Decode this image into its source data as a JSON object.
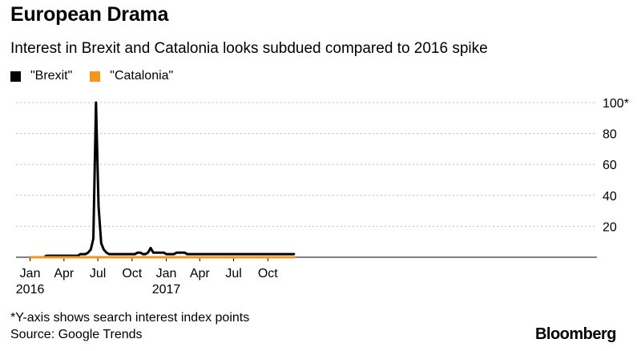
{
  "header": {
    "title": "European Drama",
    "subtitle": "Interest in Brexit and Catalonia looks subdued compared to 2016 spike"
  },
  "legend": [
    {
      "label": "\"Brexit\"",
      "color": "#000000"
    },
    {
      "label": "\"Catalonia\"",
      "color": "#f7941d"
    }
  ],
  "footer": {
    "note": "*Y-axis shows search interest index points",
    "source": "Source: Google Trends",
    "brand": "Bloomberg"
  },
  "chart_data": {
    "type": "line",
    "x_start": "2016-01-03",
    "x_step": "weekly",
    "ylim": [
      0,
      100
    ],
    "y_ticks": [
      20,
      40,
      60,
      80,
      100
    ],
    "y_tick_labels": [
      "20",
      "40",
      "60",
      "80",
      "100*"
    ],
    "x_ticks": [
      {
        "label": "Jan",
        "sublabel": "2016",
        "date": "2016-01-01"
      },
      {
        "label": "Apr",
        "date": "2016-04-01"
      },
      {
        "label": "Jul",
        "date": "2016-07-01"
      },
      {
        "label": "Oct",
        "date": "2016-10-01"
      },
      {
        "label": "Jan",
        "sublabel": "2017",
        "date": "2017-01-01"
      },
      {
        "label": "Apr",
        "date": "2017-04-01"
      },
      {
        "label": "Jul",
        "date": "2017-07-01"
      },
      {
        "label": "Oct",
        "date": "2017-10-01"
      }
    ],
    "grid": true,
    "series": [
      {
        "name": "\"Brexit\"",
        "color": "#000000",
        "values": [
          0,
          0,
          0,
          0,
          0,
          0,
          1,
          1,
          1,
          1,
          1,
          1,
          1,
          1,
          1,
          1,
          1,
          1,
          1,
          2,
          2,
          2,
          3,
          5,
          12,
          100,
          33,
          9,
          5,
          3,
          2,
          2,
          2,
          2,
          2,
          2,
          2,
          2,
          2,
          2,
          2,
          3,
          3,
          2,
          2,
          3,
          6,
          3,
          3,
          3,
          3,
          3,
          2,
          2,
          2,
          2,
          3,
          3,
          3,
          3,
          2,
          2,
          2,
          2,
          2,
          2,
          2,
          2,
          2,
          2,
          2,
          2,
          2,
          2,
          2,
          2,
          2,
          2,
          2,
          2,
          2,
          2,
          2,
          2,
          2,
          2,
          2,
          2,
          2,
          2,
          2,
          2,
          2,
          2,
          2,
          2,
          2,
          2,
          2,
          2,
          2,
          2
        ]
      },
      {
        "name": "\"Catalonia\"",
        "color": "#f7941d",
        "values": [
          0,
          0,
          0,
          0,
          0,
          0,
          0,
          0,
          0,
          0,
          0,
          0,
          0,
          0,
          0,
          0,
          0,
          0,
          0,
          0,
          0,
          0,
          0,
          0,
          0,
          0,
          0,
          0,
          0,
          0,
          0,
          0,
          0,
          0,
          0,
          0,
          0,
          0,
          0,
          0,
          0,
          0,
          0,
          0,
          0,
          0,
          0,
          0,
          0,
          0,
          0,
          0,
          0,
          0,
          0,
          0,
          0,
          0,
          0,
          0,
          0,
          0,
          0,
          0,
          0,
          0,
          0,
          0,
          0,
          0,
          0,
          0,
          0,
          0,
          0,
          0,
          0,
          0,
          0,
          0,
          0,
          0,
          0,
          0,
          0,
          0,
          0,
          0,
          0,
          0,
          0,
          0,
          0,
          0,
          0,
          0,
          0,
          0,
          0,
          0,
          0,
          0
        ]
      }
    ]
  }
}
